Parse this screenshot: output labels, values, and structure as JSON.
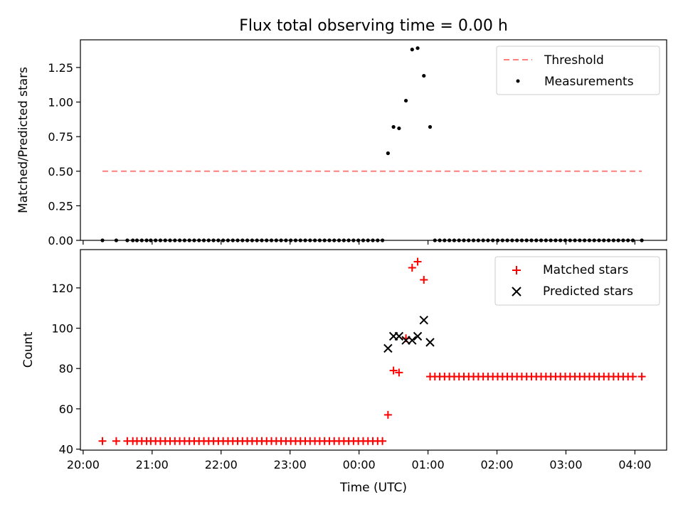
{
  "title": "Flux total observing time = 0.00 h",
  "xlabel": "Time (UTC)",
  "x_tick_labels": [
    "20:00",
    "21:00",
    "22:00",
    "23:00",
    "00:00",
    "01:00",
    "02:00",
    "03:00",
    "04:00"
  ],
  "chart_data": [
    {
      "type": "scatter",
      "ylabel": "Matched/Predicted stars",
      "xlim": [
        -0.04,
        8.46
      ],
      "ylim": [
        0,
        1.45
      ],
      "yticks": [
        "0.00",
        "0.25",
        "0.50",
        "0.75",
        "1.00",
        "1.25"
      ],
      "legend_position": "top-right",
      "threshold": {
        "name": "Threshold",
        "value": 0.5,
        "x_start": 0.28,
        "x_end": 8.1,
        "color": "#ff7f7f"
      },
      "measurements": {
        "name": "Measurements",
        "color": "#000000",
        "x": [
          0.28,
          0.48,
          0.64,
          0.72,
          0.78,
          0.85,
          0.92,
          0.98,
          1.05,
          1.12,
          1.19,
          1.26,
          1.33,
          1.4,
          1.47,
          1.54,
          1.61,
          1.68,
          1.75,
          1.82,
          1.89,
          1.96,
          2.03,
          2.1,
          2.17,
          2.24,
          2.31,
          2.38,
          2.45,
          2.52,
          2.59,
          2.66,
          2.73,
          2.8,
          2.87,
          2.94,
          3.01,
          3.08,
          3.15,
          3.22,
          3.29,
          3.36,
          3.43,
          3.5,
          3.57,
          3.64,
          3.71,
          3.78,
          3.85,
          3.92,
          3.99,
          4.06,
          4.13,
          4.2,
          4.27,
          4.34,
          4.42,
          4.5,
          4.58,
          4.68,
          4.77,
          4.85,
          4.94,
          5.03,
          5.1,
          5.17,
          5.24,
          5.31,
          5.38,
          5.45,
          5.52,
          5.59,
          5.66,
          5.73,
          5.8,
          5.87,
          5.94,
          6.01,
          6.08,
          6.15,
          6.22,
          6.29,
          6.36,
          6.43,
          6.5,
          6.57,
          6.64,
          6.71,
          6.78,
          6.85,
          6.92,
          6.99,
          7.06,
          7.13,
          7.2,
          7.27,
          7.34,
          7.41,
          7.48,
          7.55,
          7.62,
          7.69,
          7.76,
          7.83,
          7.9,
          7.97,
          8.1
        ],
        "y": [
          0,
          0,
          0,
          0,
          0,
          0,
          0,
          0,
          0,
          0,
          0,
          0,
          0,
          0,
          0,
          0,
          0,
          0,
          0,
          0,
          0,
          0,
          0,
          0,
          0,
          0,
          0,
          0,
          0,
          0,
          0,
          0,
          0,
          0,
          0,
          0,
          0,
          0,
          0,
          0,
          0,
          0,
          0,
          0,
          0,
          0,
          0,
          0,
          0,
          0,
          0,
          0,
          0,
          0,
          0,
          0,
          0.63,
          0.82,
          0.81,
          1.01,
          1.38,
          1.39,
          1.19,
          0.82,
          0,
          0,
          0,
          0,
          0,
          0,
          0,
          0,
          0,
          0,
          0,
          0,
          0,
          0,
          0,
          0,
          0,
          0,
          0,
          0,
          0,
          0,
          0,
          0,
          0,
          0,
          0,
          0,
          0,
          0,
          0,
          0,
          0,
          0,
          0,
          0,
          0,
          0,
          0,
          0,
          0,
          0,
          0
        ]
      }
    },
    {
      "type": "scatter",
      "ylabel": "Count",
      "xlim": [
        -0.04,
        8.46
      ],
      "ylim": [
        39.5,
        139
      ],
      "yticks": [
        "40",
        "60",
        "80",
        "100",
        "120"
      ],
      "legend_position": "top-right",
      "series": [
        {
          "name": "Matched stars",
          "marker": "plus",
          "color": "#ff0000",
          "x": [
            0.28,
            0.48,
            0.64,
            0.72,
            0.78,
            0.85,
            0.92,
            0.98,
            1.05,
            1.12,
            1.19,
            1.26,
            1.33,
            1.4,
            1.47,
            1.54,
            1.61,
            1.68,
            1.75,
            1.82,
            1.89,
            1.96,
            2.03,
            2.1,
            2.17,
            2.24,
            2.31,
            2.38,
            2.45,
            2.52,
            2.59,
            2.66,
            2.73,
            2.8,
            2.87,
            2.94,
            3.01,
            3.08,
            3.15,
            3.22,
            3.29,
            3.36,
            3.43,
            3.5,
            3.57,
            3.64,
            3.71,
            3.78,
            3.85,
            3.92,
            3.99,
            4.06,
            4.13,
            4.2,
            4.27,
            4.34,
            4.42,
            4.5,
            4.58,
            4.68,
            4.77,
            4.85,
            4.94,
            5.03,
            5.1,
            5.17,
            5.24,
            5.31,
            5.38,
            5.45,
            5.52,
            5.59,
            5.66,
            5.73,
            5.8,
            5.87,
            5.94,
            6.01,
            6.08,
            6.15,
            6.22,
            6.29,
            6.36,
            6.43,
            6.5,
            6.57,
            6.64,
            6.71,
            6.78,
            6.85,
            6.92,
            6.99,
            7.06,
            7.13,
            7.2,
            7.27,
            7.34,
            7.41,
            7.48,
            7.55,
            7.62,
            7.69,
            7.76,
            7.83,
            7.9,
            7.97,
            8.1
          ],
          "y": [
            44,
            44,
            44,
            44,
            44,
            44,
            44,
            44,
            44,
            44,
            44,
            44,
            44,
            44,
            44,
            44,
            44,
            44,
            44,
            44,
            44,
            44,
            44,
            44,
            44,
            44,
            44,
            44,
            44,
            44,
            44,
            44,
            44,
            44,
            44,
            44,
            44,
            44,
            44,
            44,
            44,
            44,
            44,
            44,
            44,
            44,
            44,
            44,
            44,
            44,
            44,
            44,
            44,
            44,
            44,
            44,
            57,
            79,
            78,
            95,
            130,
            133,
            124,
            76,
            76,
            76,
            76,
            76,
            76,
            76,
            76,
            76,
            76,
            76,
            76,
            76,
            76,
            76,
            76,
            76,
            76,
            76,
            76,
            76,
            76,
            76,
            76,
            76,
            76,
            76,
            76,
            76,
            76,
            76,
            76,
            76,
            76,
            76,
            76,
            76,
            76,
            76,
            76,
            76,
            76,
            76,
            76
          ]
        },
        {
          "name": "Predicted stars",
          "marker": "x",
          "color": "#000000",
          "x": [
            4.42,
            4.5,
            4.58,
            4.68,
            4.77,
            4.85,
            4.94,
            5.03
          ],
          "y": [
            90,
            96,
            96,
            94,
            94,
            96,
            104,
            93
          ]
        }
      ]
    }
  ]
}
